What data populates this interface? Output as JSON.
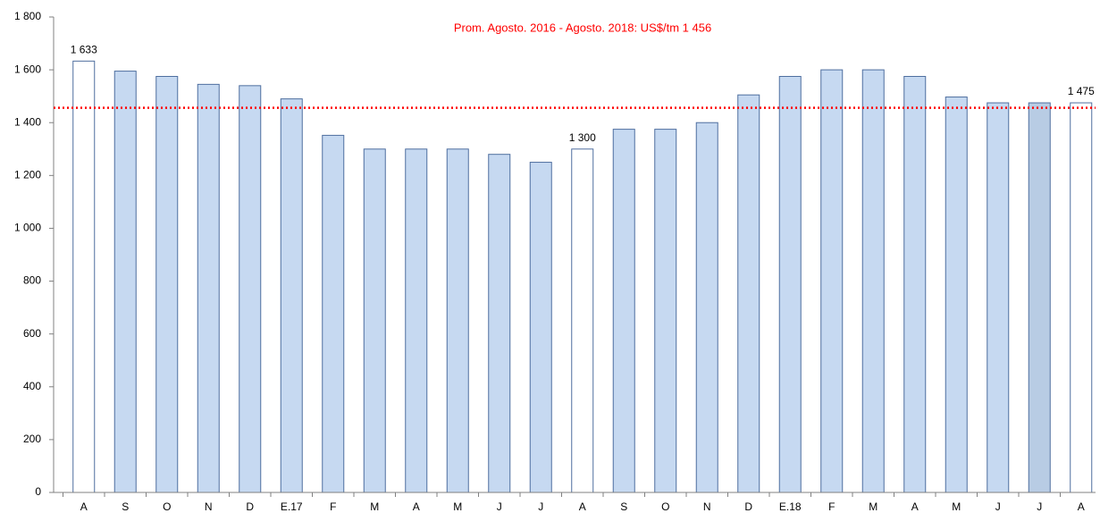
{
  "chart_data": {
    "type": "bar",
    "annotation": "Prom. Agosto. 2016 - Agosto. 2018: US$/tm 1 456",
    "average": 1456,
    "average_color": "#ff0000",
    "categories": [
      "A",
      "S",
      "O",
      "N",
      "D",
      "E.17",
      "F",
      "M",
      "A",
      "M",
      "J",
      "J",
      "A",
      "S",
      "O",
      "N",
      "D",
      "E.18",
      "F",
      "M",
      "A",
      "M",
      "J",
      "J",
      "A"
    ],
    "values": [
      1633,
      1595,
      1575,
      1545,
      1540,
      1490,
      1352,
      1300,
      1300,
      1300,
      1280,
      1250,
      1300,
      1375,
      1375,
      1400,
      1505,
      1575,
      1600,
      1600,
      1575,
      1497,
      1475,
      1475,
      1475
    ],
    "value_labels": [
      "1 633",
      null,
      null,
      null,
      null,
      null,
      null,
      null,
      null,
      null,
      null,
      null,
      "1 300",
      null,
      null,
      null,
      null,
      null,
      null,
      null,
      null,
      null,
      null,
      null,
      "1 475"
    ],
    "colors": [
      "#ffffff",
      "#c6d9f1",
      "#c6d9f1",
      "#c6d9f1",
      "#c6d9f1",
      "#c6d9f1",
      "#c6d9f1",
      "#c6d9f1",
      "#c6d9f1",
      "#c6d9f1",
      "#c6d9f1",
      "#c6d9f1",
      "#ffffff",
      "#c6d9f1",
      "#c6d9f1",
      "#c6d9f1",
      "#c6d9f1",
      "#c6d9f1",
      "#c6d9f1",
      "#c6d9f1",
      "#c6d9f1",
      "#c6d9f1",
      "#c6d9f1",
      "#b8cce4",
      "#ffffff"
    ],
    "ylim": [
      0,
      1800
    ],
    "yticks": [
      0,
      200,
      400,
      600,
      800,
      {
        "value": 1000,
        "label": "1 000"
      },
      {
        "value": 1200,
        "label": "1 200"
      },
      {
        "value": 1400,
        "label": "1 400"
      },
      {
        "value": 1600,
        "label": "1 600"
      },
      {
        "value": 1800,
        "label": "1 800"
      }
    ]
  }
}
